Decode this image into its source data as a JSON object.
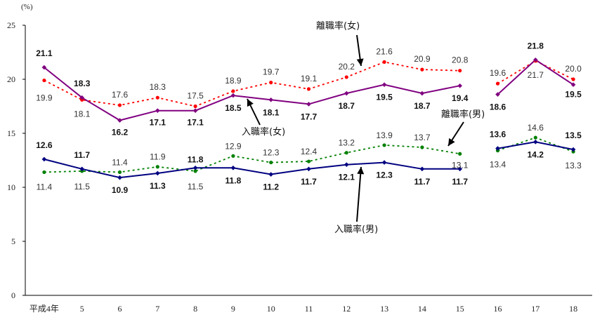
{
  "chart_data": {
    "type": "line",
    "unit_label": "(%)",
    "categories": [
      "平成4年",
      "5",
      "6",
      "7",
      "8",
      "9",
      "10",
      "11",
      "12",
      "13",
      "14",
      "15",
      "16",
      "17",
      "18"
    ],
    "ylim": [
      0,
      25
    ],
    "yticks": [
      "0",
      "5",
      "10",
      "15",
      "20",
      "25"
    ],
    "grid": false,
    "series": [
      {
        "key": "rf",
        "values": [
          19.9,
          18.1,
          17.6,
          18.3,
          17.5,
          18.9,
          19.7,
          19.1,
          20.2,
          21.6,
          20.9,
          20.8,
          19.6,
          21.7,
          20.0
        ],
        "labels": [
          "19.9",
          "18.1",
          "17.6",
          "18.3",
          "17.5",
          "18.9",
          "19.7",
          "19.1",
          "20.2",
          "21.6",
          "20.9",
          "20.8",
          "19.6",
          "21.7",
          "20.0"
        ],
        "color": "#ff0000",
        "style": "dotted"
      },
      {
        "key": "jf",
        "values": [
          21.1,
          18.3,
          16.2,
          17.1,
          17.1,
          18.5,
          18.1,
          17.7,
          18.7,
          19.5,
          18.7,
          19.4,
          18.6,
          21.8,
          19.5
        ],
        "labels": [
          "21.1",
          "18.3",
          "16.2",
          "17.1",
          "17.1",
          "18.5",
          "18.1",
          "17.7",
          "18.7",
          "19.5",
          "18.7",
          "19.4",
          "18.6",
          "21.8",
          "19.5"
        ],
        "color": "#800080",
        "style": "solid"
      },
      {
        "key": "rm",
        "values": [
          11.4,
          11.5,
          11.4,
          11.9,
          11.5,
          12.9,
          12.3,
          12.4,
          13.2,
          13.9,
          13.7,
          13.1,
          13.4,
          14.6,
          13.3
        ],
        "labels": [
          "11.4",
          "11.5",
          "11.4",
          "11.9",
          "11.5",
          "12.9",
          "12.3",
          "12.4",
          "13.2",
          "13.9",
          "13.7",
          "13.1",
          "13.4",
          "14.6",
          "13.3"
        ],
        "color": "#008000",
        "style": "dotted"
      },
      {
        "key": "jm",
        "values": [
          12.6,
          11.7,
          10.9,
          11.3,
          11.8,
          11.8,
          11.2,
          11.7,
          12.1,
          12.3,
          11.7,
          11.7,
          13.6,
          14.2,
          13.5
        ],
        "labels": [
          "12.6",
          "11.7",
          "10.9",
          "11.3",
          "11.8",
          "11.8",
          "11.2",
          "11.7",
          "12.1",
          "12.3",
          "11.7",
          "11.7",
          "13.6",
          "14.2",
          "13.5"
        ],
        "color": "#000080",
        "style": "solid"
      }
    ],
    "annotations": {
      "separation_female": "離職率(女)",
      "separation_male": "離職率(男)",
      "accession_female": "入職率(女)",
      "accession_male": "入職率(男)"
    }
  }
}
